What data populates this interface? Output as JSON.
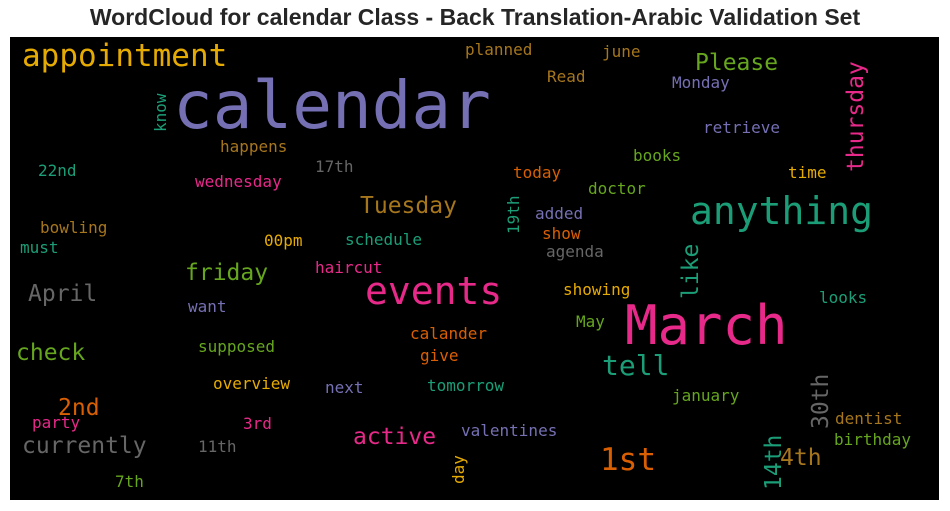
{
  "chart_data": {
    "type": "wordcloud",
    "title": "WordCloud for calendar Class - Back Translation-Arabic Validation Set",
    "background": "#000000",
    "words": [
      {
        "text": "calendar",
        "weight": 1.0,
        "color": "#7570b3",
        "orientation": "horizontal"
      },
      {
        "text": "March",
        "weight": 0.84,
        "color": "#e7298a",
        "orientation": "horizontal"
      },
      {
        "text": "events",
        "weight": 0.55,
        "color": "#e7298a",
        "orientation": "horizontal"
      },
      {
        "text": "anything",
        "weight": 0.55,
        "color": "#1b9e77",
        "orientation": "horizontal"
      },
      {
        "text": "appointment",
        "weight": 0.45,
        "color": "#e6ab02",
        "orientation": "horizontal"
      },
      {
        "text": "1st",
        "weight": 0.45,
        "color": "#d95f02",
        "orientation": "horizontal"
      },
      {
        "text": "thursday",
        "weight": 0.33,
        "color": "#e7298a",
        "orientation": "vertical"
      },
      {
        "text": "like",
        "weight": 0.33,
        "color": "#1b9e77",
        "orientation": "vertical"
      },
      {
        "text": "tell",
        "weight": 0.4,
        "color": "#1b9e77",
        "orientation": "horizontal"
      },
      {
        "text": "30th",
        "weight": 0.33,
        "color": "#666666",
        "orientation": "vertical"
      },
      {
        "text": "14th",
        "weight": 0.33,
        "color": "#1b9e77",
        "orientation": "vertical"
      },
      {
        "text": "4th",
        "weight": 0.33,
        "color": "#a6761d",
        "orientation": "horizontal"
      },
      {
        "text": "Tuesday",
        "weight": 0.33,
        "color": "#a6761d",
        "orientation": "horizontal"
      },
      {
        "text": "Please",
        "weight": 0.3,
        "color": "#66a61e",
        "orientation": "horizontal"
      },
      {
        "text": "friday",
        "weight": 0.3,
        "color": "#66a61e",
        "orientation": "horizontal"
      },
      {
        "text": "April",
        "weight": 0.33,
        "color": "#666666",
        "orientation": "horizontal"
      },
      {
        "text": "check",
        "weight": 0.3,
        "color": "#66a61e",
        "orientation": "horizontal"
      },
      {
        "text": "2nd",
        "weight": 0.3,
        "color": "#d95f02",
        "orientation": "horizontal"
      },
      {
        "text": "currently",
        "weight": 0.33,
        "color": "#666666",
        "orientation": "horizontal"
      },
      {
        "text": "active",
        "weight": 0.3,
        "color": "#e7298a",
        "orientation": "horizontal"
      },
      {
        "text": "planned",
        "weight": 0.2,
        "color": "#a6761d",
        "orientation": "horizontal"
      },
      {
        "text": "june",
        "weight": 0.2,
        "color": "#a6761d",
        "orientation": "horizontal"
      },
      {
        "text": "Read",
        "weight": 0.2,
        "color": "#a6761d",
        "orientation": "horizontal"
      },
      {
        "text": "Monday",
        "weight": 0.2,
        "color": "#7570b3",
        "orientation": "horizontal"
      },
      {
        "text": "know",
        "weight": 0.2,
        "color": "#1b9e77",
        "orientation": "vertical"
      },
      {
        "text": "retrieve",
        "weight": 0.2,
        "color": "#7570b3",
        "orientation": "horizontal"
      },
      {
        "text": "happens",
        "weight": 0.2,
        "color": "#a6761d",
        "orientation": "horizontal"
      },
      {
        "text": "books",
        "weight": 0.2,
        "color": "#66a61e",
        "orientation": "horizontal"
      },
      {
        "text": "22nd",
        "weight": 0.2,
        "color": "#1b9e77",
        "orientation": "horizontal"
      },
      {
        "text": "17th",
        "weight": 0.2,
        "color": "#666666",
        "orientation": "horizontal"
      },
      {
        "text": "today",
        "weight": 0.2,
        "color": "#d95f02",
        "orientation": "horizontal"
      },
      {
        "text": "time",
        "weight": 0.2,
        "color": "#e6ab02",
        "orientation": "horizontal"
      },
      {
        "text": "wednesday",
        "weight": 0.2,
        "color": "#e7298a",
        "orientation": "horizontal"
      },
      {
        "text": "doctor",
        "weight": 0.2,
        "color": "#66a61e",
        "orientation": "horizontal"
      },
      {
        "text": "19th",
        "weight": 0.2,
        "color": "#1b9e77",
        "orientation": "vertical"
      },
      {
        "text": "added",
        "weight": 0.2,
        "color": "#7570b3",
        "orientation": "horizontal"
      },
      {
        "text": "bowling",
        "weight": 0.2,
        "color": "#a6761d",
        "orientation": "horizontal"
      },
      {
        "text": "show",
        "weight": 0.2,
        "color": "#d95f02",
        "orientation": "horizontal"
      },
      {
        "text": "00pm",
        "weight": 0.2,
        "color": "#e6ab02",
        "orientation": "horizontal"
      },
      {
        "text": "schedule",
        "weight": 0.2,
        "color": "#1b9e77",
        "orientation": "horizontal"
      },
      {
        "text": "must",
        "weight": 0.2,
        "color": "#1b9e77",
        "orientation": "horizontal"
      },
      {
        "text": "agenda",
        "weight": 0.2,
        "color": "#666666",
        "orientation": "horizontal"
      },
      {
        "text": "haircut",
        "weight": 0.2,
        "color": "#e7298a",
        "orientation": "horizontal"
      },
      {
        "text": "showing",
        "weight": 0.2,
        "color": "#e6ab02",
        "orientation": "horizontal"
      },
      {
        "text": "want",
        "weight": 0.2,
        "color": "#7570b3",
        "orientation": "horizontal"
      },
      {
        "text": "looks",
        "weight": 0.2,
        "color": "#1b9e77",
        "orientation": "horizontal"
      },
      {
        "text": "May",
        "weight": 0.2,
        "color": "#66a61e",
        "orientation": "horizontal"
      },
      {
        "text": "calander",
        "weight": 0.2,
        "color": "#d95f02",
        "orientation": "horizontal"
      },
      {
        "text": "supposed",
        "weight": 0.2,
        "color": "#66a61e",
        "orientation": "horizontal"
      },
      {
        "text": "give",
        "weight": 0.2,
        "color": "#d95f02",
        "orientation": "horizontal"
      },
      {
        "text": "overview",
        "weight": 0.2,
        "color": "#e6ab02",
        "orientation": "horizontal"
      },
      {
        "text": "next",
        "weight": 0.2,
        "color": "#7570b3",
        "orientation": "horizontal"
      },
      {
        "text": "tomorrow",
        "weight": 0.2,
        "color": "#1b9e77",
        "orientation": "horizontal"
      },
      {
        "text": "january",
        "weight": 0.2,
        "color": "#66a61e",
        "orientation": "horizontal"
      },
      {
        "text": "dentist",
        "weight": 0.2,
        "color": "#a6761d",
        "orientation": "horizontal"
      },
      {
        "text": "party",
        "weight": 0.2,
        "color": "#e7298a",
        "orientation": "horizontal"
      },
      {
        "text": "3rd",
        "weight": 0.2,
        "color": "#e7298a",
        "orientation": "horizontal"
      },
      {
        "text": "valentines",
        "weight": 0.2,
        "color": "#7570b3",
        "orientation": "horizontal"
      },
      {
        "text": "birthday",
        "weight": 0.2,
        "color": "#66a61e",
        "orientation": "horizontal"
      },
      {
        "text": "11th",
        "weight": 0.2,
        "color": "#666666",
        "orientation": "horizontal"
      },
      {
        "text": "day",
        "weight": 0.2,
        "color": "#e6ab02",
        "orientation": "vertical"
      },
      {
        "text": "7th",
        "weight": 0.2,
        "color": "#66a61e",
        "orientation": "horizontal"
      }
    ]
  }
}
